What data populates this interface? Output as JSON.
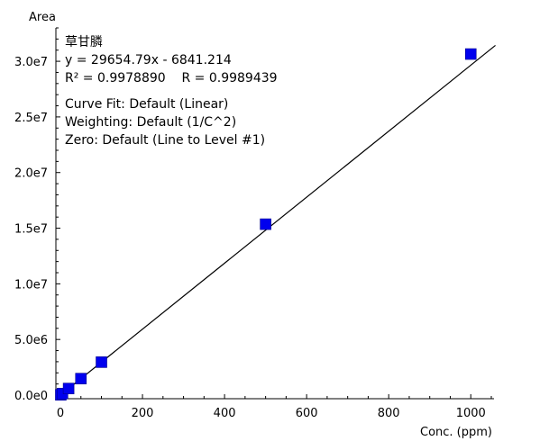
{
  "chart_data": {
    "type": "scatter",
    "title": "",
    "ylabel": "Area",
    "xlabel": "Conc. (ppm)",
    "xlim": [
      0,
      1050
    ],
    "ylim": [
      0,
      33000000
    ],
    "x_ticks": [
      0,
      200,
      400,
      600,
      800,
      1000
    ],
    "x_tick_labels": [
      "0",
      "200",
      "400",
      "600",
      "800",
      "1000"
    ],
    "y_ticks": [
      0,
      5000000,
      10000000,
      15000000,
      20000000,
      25000000,
      30000000
    ],
    "y_tick_labels": [
      "0.0e0",
      "5.0e6",
      "1.0e7",
      "1.5e7",
      "2.0e7",
      "2.5e7",
      "3.0e7"
    ],
    "grid": false,
    "marker_color": "#0000ee",
    "line_color": "#000000",
    "series": [
      {
        "x": [
          1,
          5,
          20,
          50,
          100,
          500,
          1000
        ],
        "y": [
          25000,
          140000,
          590000,
          1480000,
          2960000,
          15360000,
          30650000
        ]
      }
    ],
    "fit_line": {
      "slope": 29654.79,
      "intercept": -6841.214,
      "x_range": [
        0,
        1060
      ]
    },
    "annotations": [
      "草甘膦",
      "y = 29654.79x - 6841.214",
      "R² = 0.9978890    R = 0.9989439",
      "Curve Fit: Default (Linear)",
      "Weighting: Default (1/C^2)",
      "Zero: Default (Line to Level #1)"
    ]
  }
}
